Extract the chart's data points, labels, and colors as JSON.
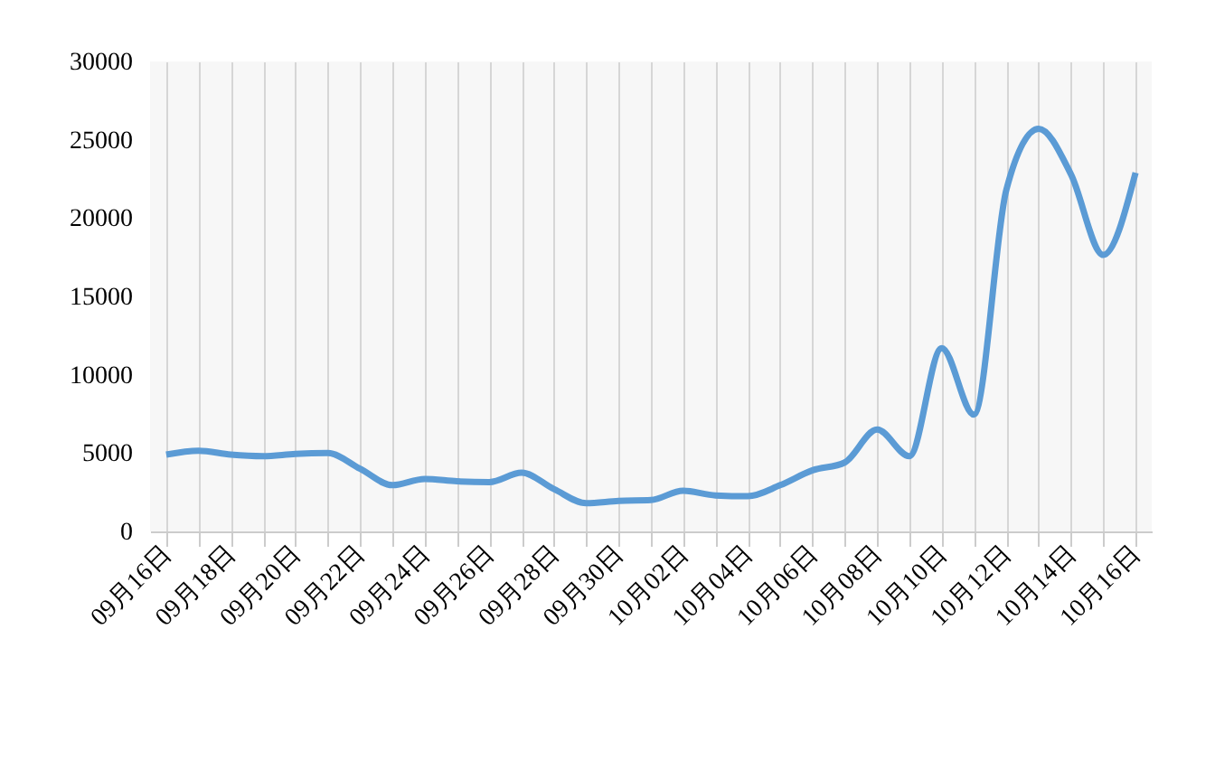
{
  "chart_data": {
    "type": "line",
    "categories": [
      "09月16日",
      null,
      "09月18日",
      null,
      "09月20日",
      null,
      "09月22日",
      null,
      "09月24日",
      null,
      "09月26日",
      null,
      "09月28日",
      null,
      "09月30日",
      null,
      "10月02日",
      null,
      "10月04日",
      null,
      "10月06日",
      null,
      "10月08日",
      null,
      "10月10日",
      null,
      "10月12日",
      null,
      "10月14日",
      null,
      "10月16日"
    ],
    "series": [
      {
        "color": "#5b9bd5",
        "values": [
          4900,
          5150,
          4900,
          4800,
          4950,
          5000,
          4000,
          2950,
          3350,
          3200,
          3150,
          3750,
          2700,
          1800,
          1950,
          2000,
          2600,
          2300,
          2250,
          2950,
          3900,
          4400,
          6500,
          4800,
          11700,
          7450,
          21800,
          25700,
          22800,
          17650,
          22900
        ]
      }
    ],
    "ylim": [
      0,
      30000
    ],
    "yticks": [
      0,
      5000,
      10000,
      15000,
      20000,
      25000,
      30000
    ],
    "grid": "x",
    "legend": false,
    "marker": "none",
    "line_style": "solid"
  }
}
